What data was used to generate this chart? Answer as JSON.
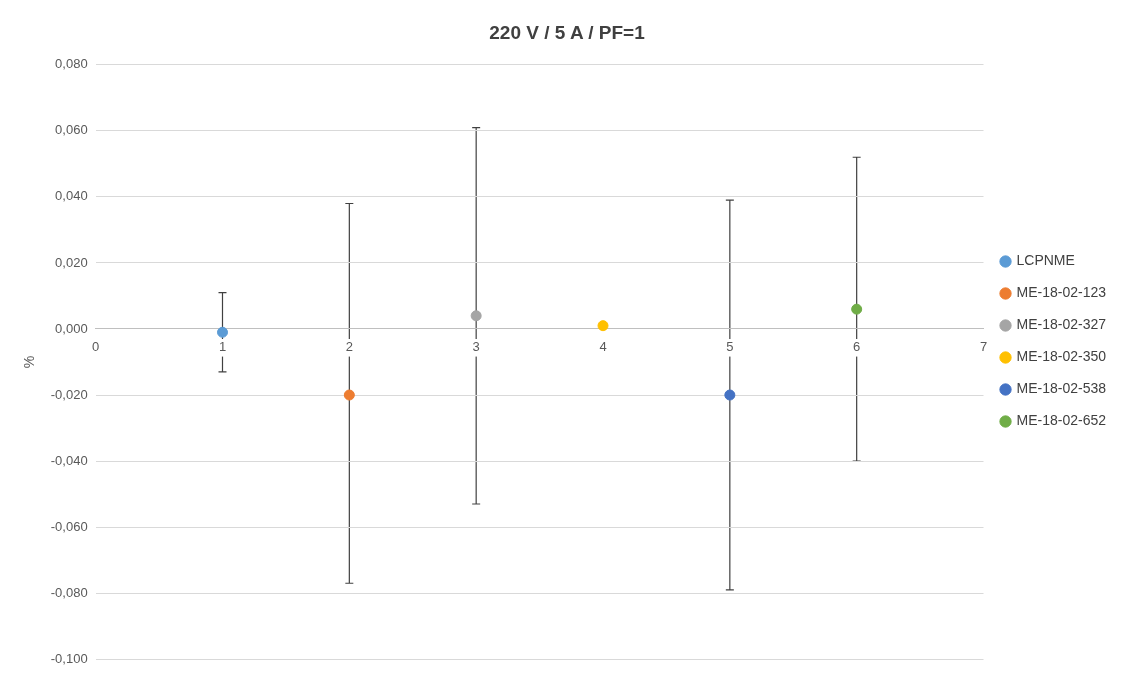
{
  "chart_data": {
    "type": "scatter",
    "title": "220 V / 5 A / PF=1",
    "ylabel": "%",
    "xlim": [
      0,
      7
    ],
    "xticks": [
      0,
      1,
      2,
      3,
      4,
      5,
      6,
      7
    ],
    "ylim": [
      -0.1,
      0.08
    ],
    "yticks": [
      {
        "value": -0.1,
        "label": "-0,100"
      },
      {
        "value": -0.08,
        "label": "-0,080"
      },
      {
        "value": -0.06,
        "label": "-0,060"
      },
      {
        "value": -0.04,
        "label": "-0,040"
      },
      {
        "value": -0.02,
        "label": "-0,020"
      },
      {
        "value": 0,
        "label": "0,000"
      },
      {
        "value": 0.02,
        "label": "0,020"
      },
      {
        "value": 0.04,
        "label": "0,040"
      },
      {
        "value": 0.06,
        "label": "0,060"
      },
      {
        "value": 0.08,
        "label": "0,080"
      }
    ],
    "grid": "y",
    "legend": "right",
    "marker": "circle",
    "series": [
      {
        "name": "LCPNME",
        "color": "#5b9bd5",
        "x": [
          1
        ],
        "values": [
          -0.001
        ],
        "errors": [
          [
            -0.013,
            0.011
          ]
        ]
      },
      {
        "name": "ME-18-02-123",
        "color": "#ed7d31",
        "x": [
          2
        ],
        "values": [
          -0.02
        ],
        "errors": [
          [
            -0.077,
            0.038
          ]
        ]
      },
      {
        "name": "ME-18-02-327",
        "color": "#a5a5a5",
        "x": [
          3
        ],
        "values": [
          0.004
        ],
        "errors": [
          [
            -0.053,
            0.061
          ]
        ]
      },
      {
        "name": "ME-18-02-350",
        "color": "#ffc000",
        "x": [
          4
        ],
        "values": [
          0.001
        ],
        "errors": [
          null
        ]
      },
      {
        "name": "ME-18-02-538",
        "color": "#4472c4",
        "x": [
          5
        ],
        "values": [
          -0.02
        ],
        "errors": [
          [
            -0.079,
            0.039
          ]
        ]
      },
      {
        "name": "ME-18-02-652",
        "color": "#70ad47",
        "x": [
          6
        ],
        "values": [
          0.006
        ],
        "errors": [
          [
            -0.04,
            0.052
          ]
        ]
      }
    ]
  }
}
